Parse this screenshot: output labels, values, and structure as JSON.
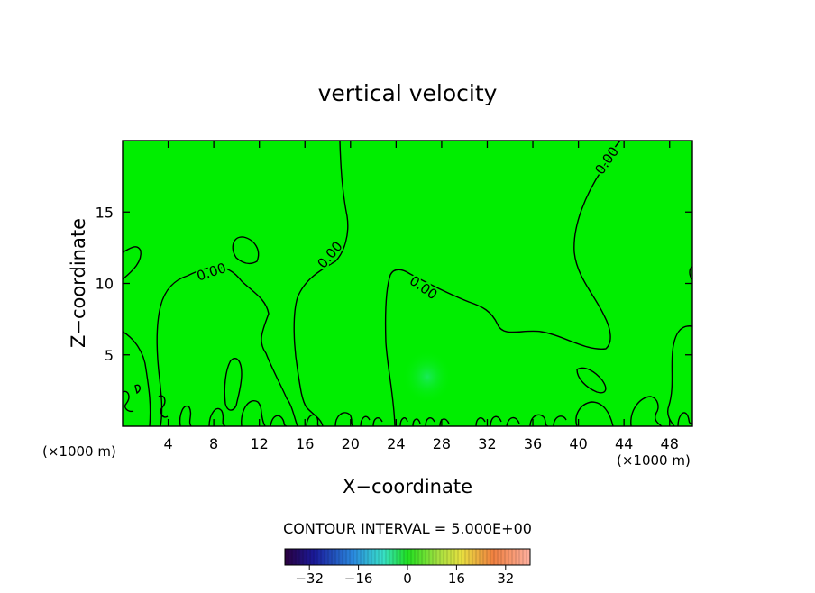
{
  "chart_data": {
    "type": "contour",
    "title": "vertical velocity",
    "xlabel": "X−coordinate",
    "ylabel": "Z−coordinate",
    "x_unit_left": "(×1000 m)",
    "x_unit_right": "(×1000 m)",
    "xlim": [
      0,
      50
    ],
    "ylim": [
      0,
      20
    ],
    "x_ticks": [
      4,
      8,
      12,
      16,
      20,
      24,
      28,
      32,
      36,
      40,
      44,
      48
    ],
    "y_ticks": [
      5,
      10,
      15
    ],
    "fill_color": "#00ee00",
    "contour_color": "#000000",
    "contour_labels": [
      {
        "text": "0.00",
        "x": 7.8,
        "y": 10.8,
        "angle": -18
      },
      {
        "text": "0.00",
        "x": 18.2,
        "y": 12.0,
        "angle": -50
      },
      {
        "text": "0.00",
        "x": 26.4,
        "y": 9.7,
        "angle": 35
      },
      {
        "text": "0.00",
        "x": 42.5,
        "y": 18.6,
        "angle": -55
      }
    ],
    "contour_interval_text": "CONTOUR INTERVAL = 5.000E+00",
    "colorbar": {
      "min": -40,
      "max": 40,
      "ticks": [
        -32,
        -16,
        0,
        16,
        32
      ],
      "tick_labels": [
        "−32",
        "−16",
        "0",
        "16",
        "32"
      ]
    }
  }
}
